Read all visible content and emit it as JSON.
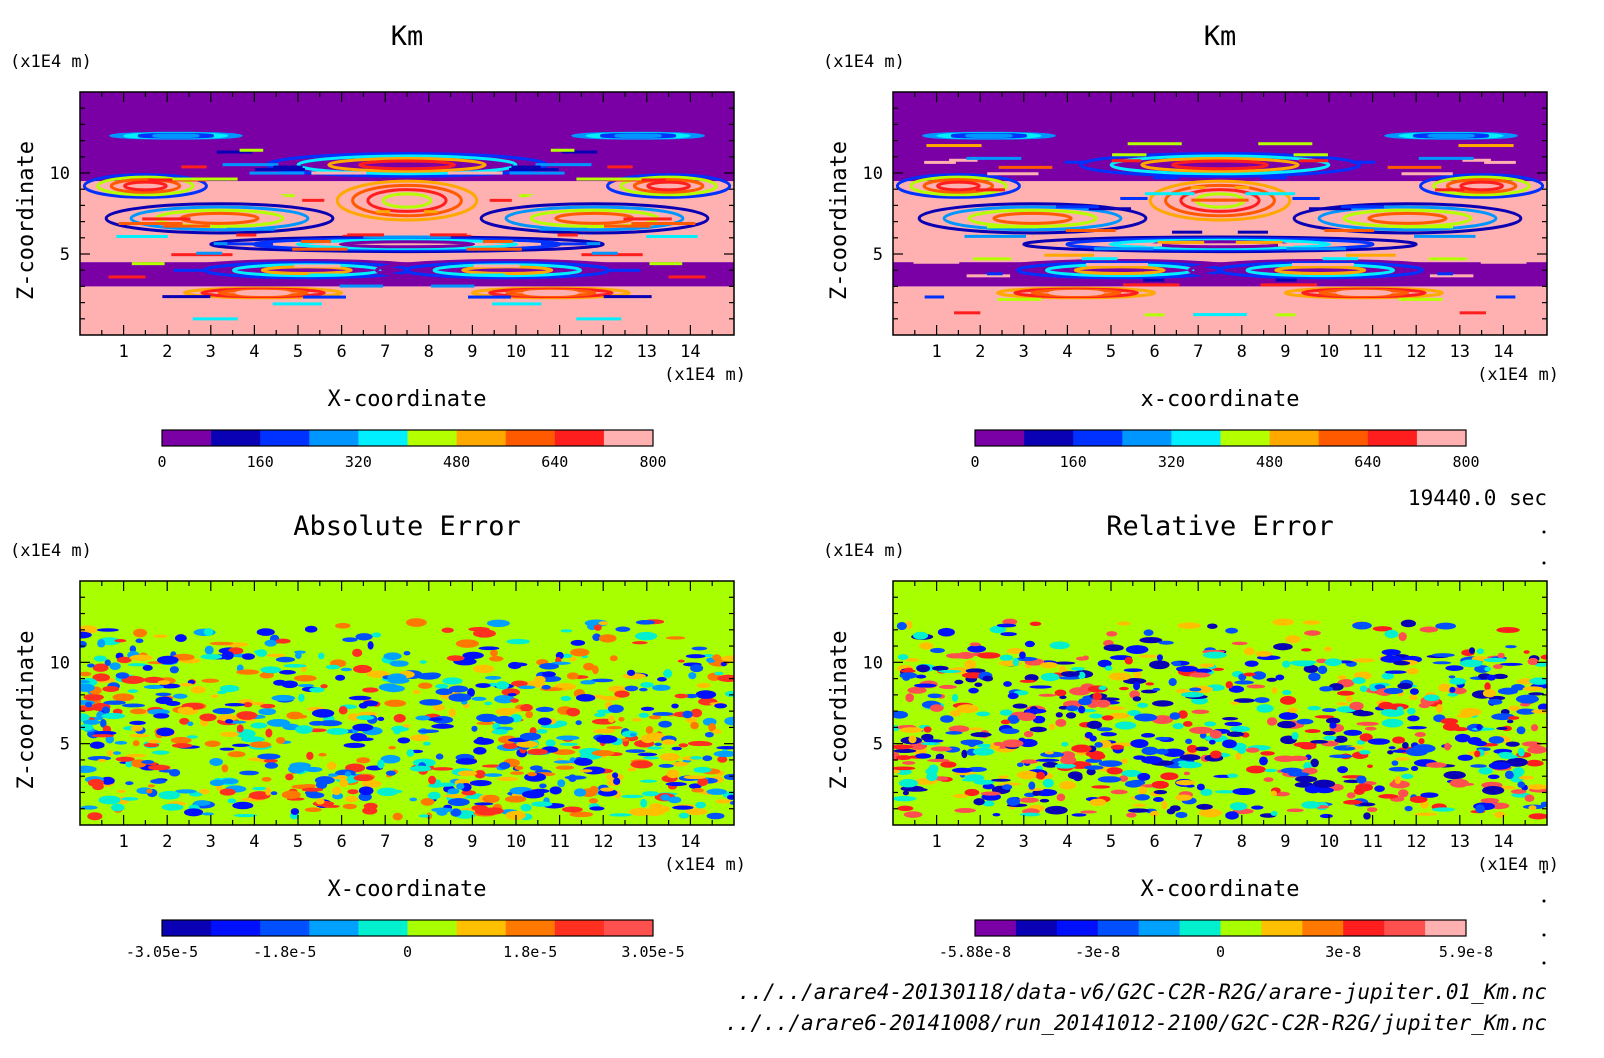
{
  "chart_data": [
    {
      "type": "heatmap",
      "title": "Km",
      "xlabel": "X-coordinate",
      "ylabel": "Z-coordinate",
      "x_unit": "(x1E4 m)",
      "y_unit": "(x1E4 m)",
      "xlim": [
        0,
        15
      ],
      "ylim": [
        0,
        15
      ],
      "xticks": [
        1,
        2,
        3,
        4,
        5,
        6,
        7,
        8,
        9,
        10,
        11,
        12,
        13,
        14
      ],
      "yticks": [
        5,
        10
      ],
      "colorbar": {
        "ticks": [
          "0",
          "160",
          "320",
          "480",
          "640",
          "800"
        ],
        "colors": [
          "#7a00a6",
          "#0a00b4",
          "#0032ff",
          "#0096ff",
          "#00f0ff",
          "#b4ff00",
          "#ffa800",
          "#ff5a00",
          "#ff1e1e",
          "#ffb0b0"
        ]
      },
      "pattern": "km"
    },
    {
      "type": "heatmap",
      "title": "Km",
      "xlabel": "x-coordinate",
      "ylabel": "Z-coordinate",
      "x_unit": "(x1E4 m)",
      "y_unit": "(x1E4 m)",
      "xlim": [
        0,
        15
      ],
      "ylim": [
        0,
        15
      ],
      "xticks": [
        1,
        2,
        3,
        4,
        5,
        6,
        7,
        8,
        9,
        10,
        11,
        12,
        13,
        14
      ],
      "yticks": [
        5,
        10
      ],
      "colorbar": {
        "ticks": [
          "0",
          "160",
          "320",
          "480",
          "640",
          "800"
        ],
        "colors": [
          "#7a00a6",
          "#0a00b4",
          "#0032ff",
          "#0096ff",
          "#00f0ff",
          "#b4ff00",
          "#ffa800",
          "#ff5a00",
          "#ff1e1e",
          "#ffb0b0"
        ]
      },
      "pattern": "km"
    },
    {
      "type": "heatmap",
      "title": "Absolute Error",
      "xlabel": "X-coordinate",
      "ylabel": "Z-coordinate",
      "x_unit": "(x1E4 m)",
      "y_unit": "(x1E4 m)",
      "xlim": [
        0,
        15
      ],
      "ylim": [
        0,
        15
      ],
      "xticks": [
        1,
        2,
        3,
        4,
        5,
        6,
        7,
        8,
        9,
        10,
        11,
        12,
        13,
        14
      ],
      "yticks": [
        5,
        10
      ],
      "colorbar": {
        "ticks": [
          "-3.05e-5",
          "-1.8e-5",
          "0",
          "1.8e-5",
          "3.05e-5"
        ],
        "colors": [
          "#0a00b4",
          "#0010ff",
          "#0050ff",
          "#00a0ff",
          "#00f0d0",
          "#a8ff00",
          "#ffc000",
          "#ff7800",
          "#ff3020",
          "#ff5050"
        ]
      },
      "pattern": "error"
    },
    {
      "type": "heatmap",
      "title": "Relative Error",
      "xlabel": "X-coordinate",
      "ylabel": "Z-coordinate",
      "x_unit": "(x1E4 m)",
      "y_unit": "(x1E4 m)",
      "xlim": [
        0,
        15
      ],
      "ylim": [
        0,
        15
      ],
      "xticks": [
        1,
        2,
        3,
        4,
        5,
        6,
        7,
        8,
        9,
        10,
        11,
        12,
        13,
        14
      ],
      "yticks": [
        5,
        10
      ],
      "colorbar": {
        "ticks": [
          "-5.88e-8",
          "-3e-8",
          "0",
          "3e-8",
          "5.9e-8"
        ],
        "colors": [
          "#7a00a6",
          "#0a00b4",
          "#0010ff",
          "#0050ff",
          "#00a0ff",
          "#00f0d0",
          "#a8ff00",
          "#ffc000",
          "#ff7800",
          "#ff1e1e",
          "#ff5050",
          "#ffb0b0"
        ]
      },
      "pattern": "error"
    }
  ],
  "annotations": {
    "time": "19440.0 sec",
    "file1": "../../arare4-20130118/data-v6/G2C-C2R-R2G/arare-jupiter.01_Km.nc",
    "file2": "../../arare6-20141008/run_20141012-2100/G2C-C2R-R2G/jupiter_Km.nc"
  }
}
